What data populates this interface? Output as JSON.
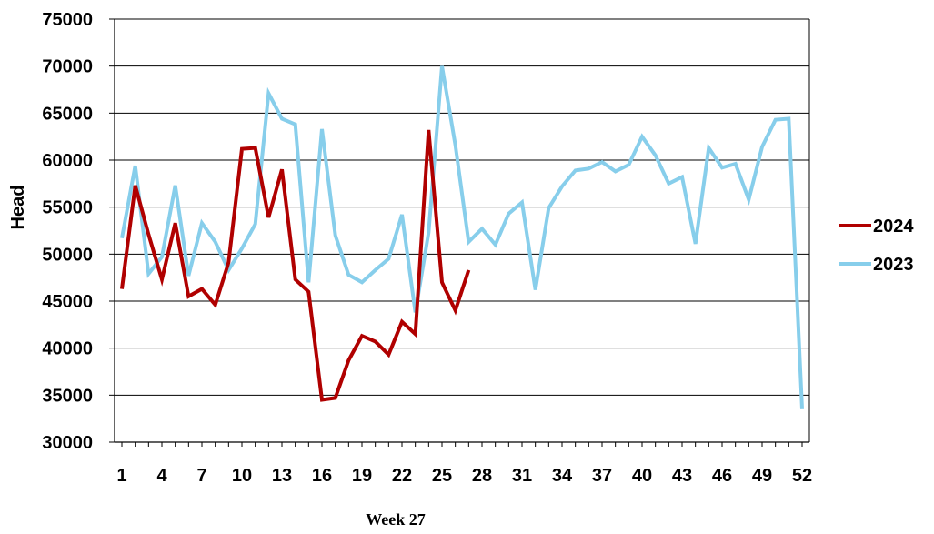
{
  "chart_data": {
    "type": "line",
    "title": "",
    "xlabel": "",
    "ylabel": "Head",
    "footer": "Week 27",
    "xlim": [
      1,
      52
    ],
    "ylim": [
      30000,
      75000
    ],
    "ytick_step": 5000,
    "xticks": [
      1,
      4,
      7,
      10,
      13,
      16,
      19,
      22,
      25,
      28,
      31,
      34,
      37,
      40,
      43,
      46,
      49,
      52
    ],
    "grid": true,
    "legend_position": "right",
    "series": [
      {
        "name": "2024",
        "color": "#b00000",
        "x": [
          1,
          2,
          3,
          4,
          5,
          6,
          7,
          8,
          9,
          10,
          11,
          12,
          13,
          14,
          15,
          16,
          17,
          18,
          19,
          20,
          21,
          22,
          23,
          24,
          25,
          26,
          27
        ],
        "values": [
          46300,
          57300,
          52100,
          47300,
          53300,
          45500,
          46300,
          44600,
          49100,
          61200,
          61300,
          53900,
          59000,
          47300,
          46000,
          34500,
          34700,
          38700,
          41300,
          40700,
          39300,
          42800,
          41500,
          63200,
          47000,
          44000,
          48300
        ]
      },
      {
        "name": "2023",
        "color": "#87ceeb",
        "x": [
          1,
          2,
          3,
          4,
          5,
          6,
          7,
          8,
          9,
          10,
          11,
          12,
          13,
          14,
          15,
          16,
          17,
          18,
          19,
          20,
          21,
          22,
          23,
          24,
          25,
          26,
          27,
          28,
          29,
          30,
          31,
          32,
          33,
          34,
          35,
          36,
          37,
          38,
          39,
          40,
          41,
          42,
          43,
          44,
          45,
          46,
          47,
          48,
          49,
          50,
          51,
          52
        ],
        "values": [
          51700,
          59400,
          47900,
          49700,
          57300,
          47700,
          53300,
          51300,
          48300,
          50600,
          53200,
          67100,
          64400,
          63800,
          47000,
          63300,
          52000,
          47800,
          47000,
          48300,
          49500,
          54200,
          43800,
          52300,
          70000,
          61600,
          51300,
          52700,
          51000,
          54300,
          55500,
          46200,
          54900,
          57200,
          58900,
          59100,
          59800,
          58800,
          59500,
          62500,
          60500,
          57500,
          58200,
          51100,
          61300,
          59200,
          59600,
          55800,
          61400,
          64300,
          64400,
          33500
        ]
      }
    ]
  }
}
